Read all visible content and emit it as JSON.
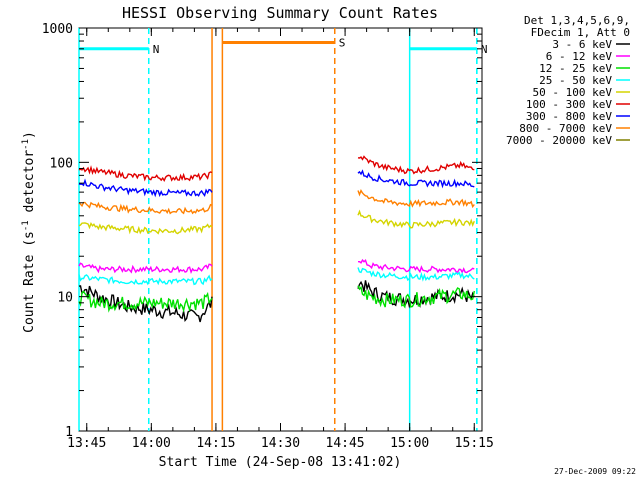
{
  "chart_data": {
    "type": "line",
    "title": "HESSI Observing Summary Count Rates",
    "xlabel": "Start Time (24-Sep-08 13:41:02)",
    "ylabel": "Count Rate (s⁻¹ detector⁻¹)",
    "ylabel_parts": {
      "base": "Count Rate (s",
      "sup1": "-1",
      "mid": " detector",
      "sup2": "-1",
      "end": ")"
    },
    "yscale": "log",
    "xlim": [
      13.72,
      15.28
    ],
    "ylim": [
      1,
      1000
    ],
    "x_ticks": [
      {
        "value": 13.75,
        "label": "13:45"
      },
      {
        "value": 14.0,
        "label": "14:00"
      },
      {
        "value": 14.25,
        "label": "14:15"
      },
      {
        "value": 14.5,
        "label": "14:30"
      },
      {
        "value": 14.75,
        "label": "14:45"
      },
      {
        "value": 15.0,
        "label": "15:00"
      },
      {
        "value": 15.25,
        "label": "15:15"
      }
    ],
    "y_ticks": [
      {
        "value": 1,
        "label": "1"
      },
      {
        "value": 10,
        "label": "10"
      },
      {
        "value": 100,
        "label": "100"
      },
      {
        "value": 1000,
        "label": "1000"
      }
    ],
    "legend_header": [
      "Det 1,3,4,5,6,9,",
      "FDecim 1, Att 0"
    ],
    "legend_position": "right",
    "series": [
      {
        "name": "3 - 6 keV",
        "color": "#000000",
        "segments": [
          {
            "x": [
              13.72,
              13.8,
              13.9,
              14.0,
              14.1,
              14.18,
              14.235
            ],
            "y": [
              12,
              10,
              8.5,
              8,
              7.5,
              7,
              9
            ]
          },
          {
            "x": [
              14.8,
              14.85,
              14.9,
              15.0,
              15.1,
              15.2,
              15.25
            ],
            "y": [
              13,
              11,
              10,
              9.5,
              10,
              10.5,
              9.5
            ]
          }
        ]
      },
      {
        "name": "6 - 12 keV",
        "color": "#ff00ff",
        "segments": [
          {
            "x": [
              13.72,
              13.8,
              13.9,
              14.0,
              14.1,
              14.2,
              14.235
            ],
            "y": [
              17,
              16,
              16,
              16,
              16,
              16,
              17
            ]
          },
          {
            "x": [
              14.8,
              14.85,
              14.9,
              15.0,
              15.1,
              15.2,
              15.25
            ],
            "y": [
              19,
              17,
              16.5,
              16,
              16,
              16,
              15.5
            ]
          }
        ]
      },
      {
        "name": "12 - 25 keV",
        "color": "#00e000",
        "segments": [
          {
            "x": [
              13.72,
              13.8,
              13.9,
              14.0,
              14.1,
              14.2,
              14.235
            ],
            "y": [
              10,
              9,
              9,
              9,
              9,
              9,
              10
            ]
          },
          {
            "x": [
              14.8,
              14.85,
              14.9,
              15.0,
              15.1,
              15.2,
              15.25
            ],
            "y": [
              11,
              10,
              9.5,
              9.5,
              10,
              10.5,
              10
            ]
          }
        ]
      },
      {
        "name": "25 - 50 keV",
        "color": "#00ffff",
        "segments": [
          {
            "x": [
              13.72,
              13.8,
              13.9,
              14.0,
              14.1,
              14.2,
              14.235
            ],
            "y": [
              14,
              13.5,
              13,
              13,
              13,
              13,
              14
            ]
          },
          {
            "x": [
              14.8,
              14.85,
              14.9,
              15.0,
              15.1,
              15.2,
              15.25
            ],
            "y": [
              16,
              15,
              14.5,
              14,
              14,
              14.5,
              14
            ]
          }
        ]
      },
      {
        "name": "50 - 100 keV",
        "color": "#d4d400",
        "segments": [
          {
            "x": [
              13.72,
              13.8,
              13.9,
              14.0,
              14.1,
              14.2,
              14.235
            ],
            "y": [
              35,
              33,
              32,
              31,
              31,
              32,
              34
            ]
          },
          {
            "x": [
              14.8,
              14.85,
              14.9,
              15.0,
              15.1,
              15.2,
              15.25
            ],
            "y": [
              42,
              38,
              36,
              34,
              35,
              36,
              35
            ]
          }
        ]
      },
      {
        "name": "100 - 300 keV",
        "color": "#e00000",
        "segments": [
          {
            "x": [
              13.72,
              13.8,
              13.9,
              14.0,
              14.1,
              14.2,
              14.235
            ],
            "y": [
              92,
              85,
              80,
              77,
              77,
              78,
              82
            ]
          },
          {
            "x": [
              14.8,
              14.85,
              14.9,
              15.0,
              15.1,
              15.2,
              15.25
            ],
            "y": [
              112,
              100,
              92,
              86,
              90,
              95,
              88
            ]
          }
        ]
      },
      {
        "name": "300 - 800 keV",
        "color": "#0000ff",
        "segments": [
          {
            "x": [
              13.72,
              13.8,
              13.9,
              14.0,
              14.1,
              14.2,
              14.235
            ],
            "y": [
              72,
              66,
              62,
              60,
              59,
              59,
              62
            ]
          },
          {
            "x": [
              14.8,
              14.85,
              14.9,
              15.0,
              15.1,
              15.2,
              15.25
            ],
            "y": [
              85,
              78,
              74,
              70,
              70,
              70,
              67
            ]
          }
        ]
      },
      {
        "name": "800 - 7000 keV",
        "color": "#ff8000",
        "segments": [
          {
            "x": [
              13.72,
              13.8,
              13.9,
              14.0,
              14.1,
              14.2,
              14.235
            ],
            "y": [
              50,
              47,
              45,
              44,
              43,
              44,
              47
            ]
          },
          {
            "x": [
              14.8,
              14.85,
              14.9,
              15.0,
              15.1,
              15.2,
              15.25
            ],
            "y": [
              60,
              55,
              51,
              49,
              50,
              51,
              48
            ]
          }
        ]
      },
      {
        "name": "7000 - 20000 keV",
        "color": "#808000",
        "segments": []
      }
    ],
    "regions": [
      {
        "label": "N",
        "color": "#00ffff",
        "x_start": 13.72,
        "x_end": 13.99,
        "level": 700,
        "start_style": "solid",
        "end_style": "dashed"
      },
      {
        "label": "S",
        "color": "#ff8000",
        "x_start": 14.275,
        "x_end": 14.71,
        "level": 780,
        "start_style": "solid",
        "end_style": "dashed"
      },
      {
        "label": "N",
        "color": "#00ffff",
        "x_start": 15.0,
        "x_end": 15.26,
        "level": 700,
        "start_style": "solid",
        "end_style": "dashed"
      }
    ],
    "extra_vlines": [
      {
        "x": 14.235,
        "color": "#ff8000",
        "style": "solid"
      },
      {
        "x": 15.26,
        "color": "#00ffff",
        "style": "dashed"
      }
    ],
    "grid": false
  },
  "footer": {
    "date": "27-Dec-2009 09:22"
  }
}
